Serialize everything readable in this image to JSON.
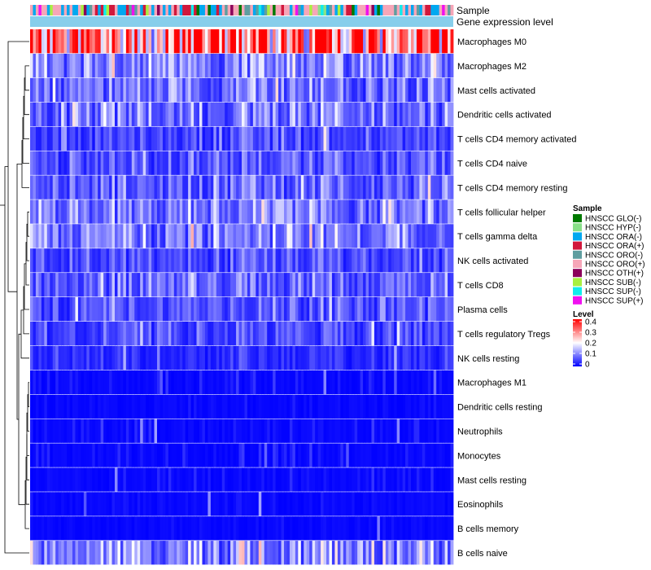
{
  "chart_data": {
    "type": "heatmap",
    "annotation_labels": [
      "Sample",
      "Gene expression level"
    ],
    "rows": [
      "Macrophages M0",
      "Macrophages M2",
      "Mast cells activated",
      "Dendritic cells activated",
      "T cells CD4 memory activated",
      "T cells CD4 naive",
      "T cells CD4 memory resting",
      "T cells follicular helper",
      "T cells gamma delta",
      "NK cells activated",
      "T cells CD8",
      "Plasma cells",
      "T cells regulatory  Tregs",
      "NK cells resting",
      "Macrophages M1",
      "Dendritic cells resting",
      "Neutrophils",
      "Monocytes",
      "Mast cells resting",
      "Eosinophils",
      "B cells memory",
      "B cells naive"
    ],
    "row_mean_level": [
      0.3,
      0.1,
      0.08,
      0.08,
      0.05,
      0.06,
      0.07,
      0.08,
      0.09,
      0.05,
      0.07,
      0.06,
      0.05,
      0.03,
      0.02,
      0.01,
      0.02,
      0.02,
      0.02,
      0.01,
      0.01,
      0.1
    ],
    "n_samples": 150,
    "sample_legend": {
      "title": "Sample",
      "items": [
        {
          "label": "HNSCC GLO(-)",
          "color": "#007a00"
        },
        {
          "label": "HNSCC HYP(-)",
          "color": "#88e088"
        },
        {
          "label": "HNSCC ORA(-)",
          "color": "#00a8f0"
        },
        {
          "label": "HNSCC ORA(+)",
          "color": "#d1183c"
        },
        {
          "label": "HNSCC ORO(-)",
          "color": "#5f9ea0"
        },
        {
          "label": "HNSCC ORO(+)",
          "color": "#f6a6b8"
        },
        {
          "label": "HNSCC OTH(+)",
          "color": "#8b005a"
        },
        {
          "label": "HNSCC SUB(-)",
          "color": "#a8f040"
        },
        {
          "label": "HNSCC SUP(-)",
          "color": "#10ecec"
        },
        {
          "label": "HNSCC SUP(+)",
          "color": "#f010f0"
        }
      ]
    },
    "level_legend": {
      "title": "Level",
      "ticks": [
        "0.4",
        "0.3",
        "0.2",
        "0.1",
        "0"
      ],
      "range": [
        0,
        0.4
      ],
      "colors": [
        "#0000ff",
        "#ffffff",
        "#ff0000"
      ]
    },
    "gene_expression_level_color": "#87ceeb"
  }
}
